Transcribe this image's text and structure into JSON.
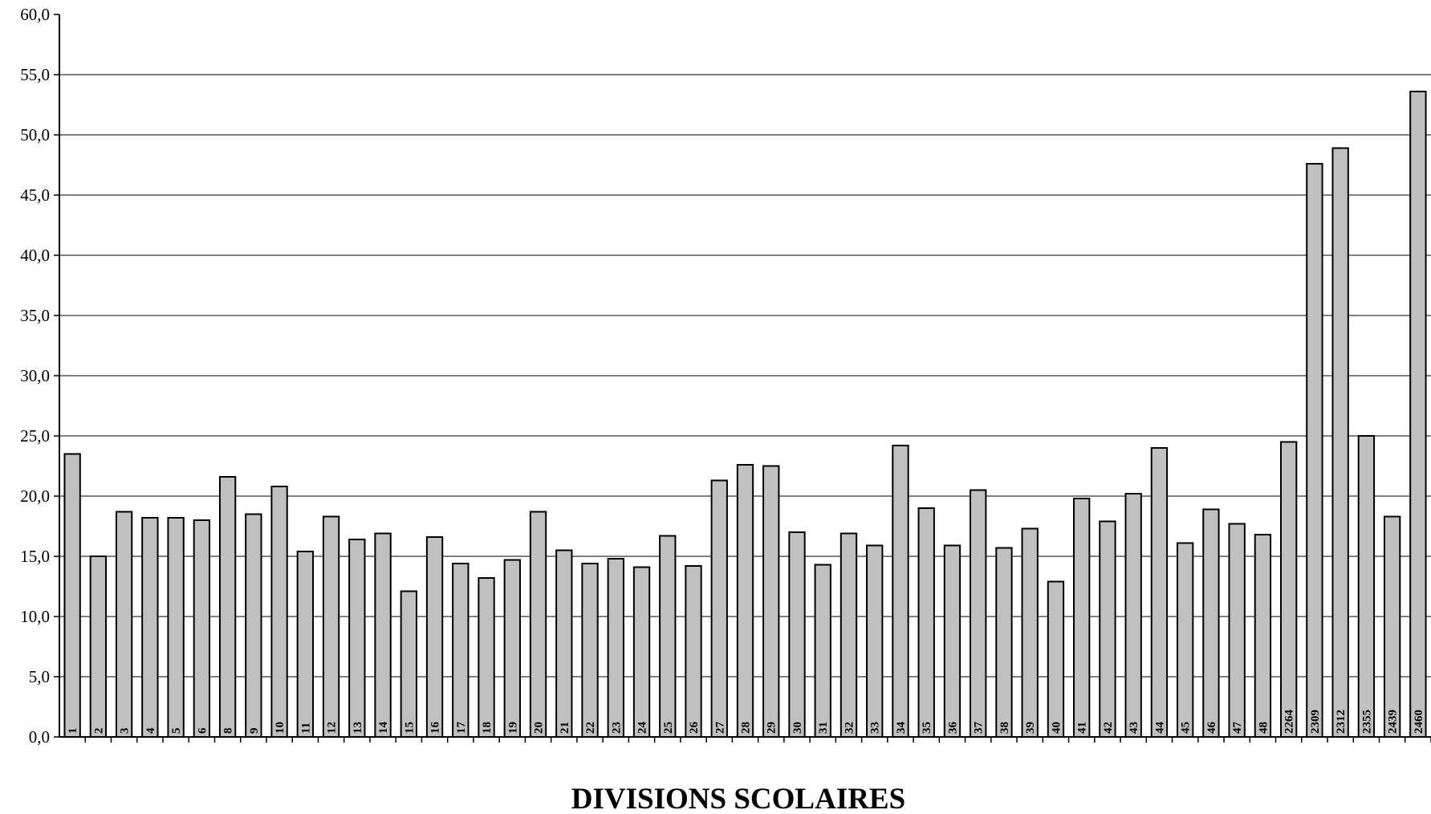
{
  "chart_data": {
    "type": "bar",
    "title": "",
    "xlabel": "DIVISIONS SCOLAIRES",
    "ylabel": "",
    "ylim": [
      0,
      60
    ],
    "y_ticks": [
      "0,0",
      "5,0",
      "10,0",
      "15,0",
      "20,0",
      "25,0",
      "30,0",
      "35,0",
      "40,0",
      "45,0",
      "50,0",
      "55,0",
      "60,0"
    ],
    "grid": true,
    "legend": "none",
    "categories": [
      "1",
      "2",
      "3",
      "4",
      "5",
      "6",
      "8",
      "9",
      "10",
      "11",
      "12",
      "13",
      "14",
      "15",
      "16",
      "17",
      "18",
      "19",
      "20",
      "21",
      "22",
      "23",
      "24",
      "25",
      "26",
      "27",
      "28",
      "29",
      "30",
      "31",
      "32",
      "33",
      "34",
      "35",
      "36",
      "37",
      "38",
      "39",
      "40",
      "41",
      "42",
      "43",
      "44",
      "45",
      "46",
      "47",
      "48",
      "2264",
      "2309",
      "2312",
      "2355",
      "2439",
      "2460"
    ],
    "values": [
      23.5,
      15.0,
      18.7,
      18.2,
      18.2,
      18.0,
      21.6,
      18.5,
      20.8,
      15.4,
      18.3,
      16.4,
      16.9,
      12.1,
      16.6,
      14.4,
      13.2,
      14.7,
      18.7,
      15.5,
      14.4,
      14.8,
      14.1,
      16.7,
      14.2,
      21.3,
      22.6,
      22.5,
      17.0,
      14.3,
      16.9,
      15.9,
      24.2,
      19.0,
      15.9,
      20.5,
      15.7,
      17.3,
      12.9,
      19.8,
      17.9,
      20.2,
      24.0,
      16.1,
      18.9,
      17.7,
      16.8,
      24.5,
      47.6,
      48.9,
      25.0,
      18.3,
      53.6
    ],
    "colors": {
      "bar": "#c0c0c0",
      "bar_stroke": "#000000",
      "grid": "#000000"
    }
  }
}
